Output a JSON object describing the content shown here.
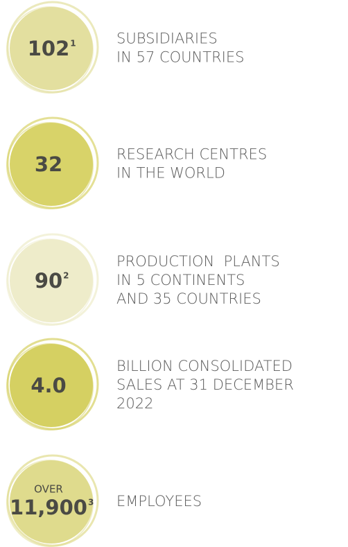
{
  "items": [
    {
      "number": "102",
      "note": "1",
      "color": "#e3df9f",
      "lines": [
        "SUBSIDIARIES",
        "IN 57 COUNTRIES"
      ]
    },
    {
      "number": "32",
      "color": "#d8d369",
      "lines": [
        "RESEARCH CENTRES",
        "IN THE WORLD"
      ]
    },
    {
      "number": "90",
      "note": "2",
      "color": "#eeecca",
      "lines": [
        "PRODUCTION  PLANTS",
        "IN 5 CONTINENTS",
        "AND 35 COUNTRIES"
      ]
    },
    {
      "number": "4.0",
      "color": "#d5d062",
      "lines": [
        "BILLION CONSOLIDATED",
        "SALES AT 31 DECEMBER",
        "2022"
      ]
    },
    {
      "prefix": "OVER",
      "number": "11,900",
      "note": "3",
      "color": "#dfdb8d",
      "lines": [
        "EMPLOYEES"
      ]
    }
  ]
}
